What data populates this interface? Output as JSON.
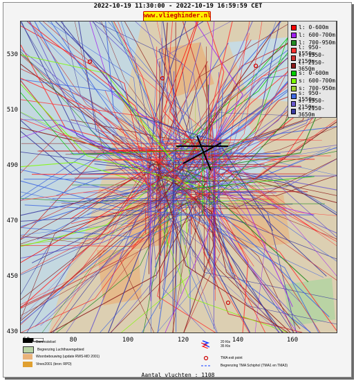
{
  "title": "2022-10-19 11:30:00 - 2022-10-19 16:59:59 CET",
  "site_badge": "www.vlieghinder.nl",
  "axes": {
    "y_ticks": [
      "530",
      "510",
      "490",
      "470",
      "450",
      "430"
    ],
    "x_ticks": [
      "60",
      "80",
      "100",
      "120",
      "140",
      "160"
    ]
  },
  "legend": [
    {
      "label": "l: 0-600m",
      "color": "#ff0000"
    },
    {
      "label": "l: 600-700m",
      "color": "#a020f0"
    },
    {
      "label": "l: 700-950m",
      "color": "#228b22"
    },
    {
      "label": "l: 950-1550m",
      "color": "#ff3030"
    },
    {
      "label": "l: 1550-2150m",
      "color": "#cd3333"
    },
    {
      "label": "l: 2150-3650m",
      "color": "#8b1a1a"
    },
    {
      "label": "s: 0-600m",
      "color": "#00cd00"
    },
    {
      "label": "s: 600-700m",
      "color": "#7cfc00"
    },
    {
      "label": "s: 700-950m",
      "color": "#9acd32"
    },
    {
      "label": "s: 950-1550m",
      "color": "#4169e1"
    },
    {
      "label": "s: 1550-2150m",
      "color": "#6a5acd"
    },
    {
      "label": "s: 2150-3650m",
      "color": "#3a3aa0"
    }
  ],
  "bottom_legend": {
    "runway": "Banenstelsel",
    "airport_boundary": "Begrenzing Luchthavengebied",
    "housing": "Woonbebouwing (update RWS-MD 2001)",
    "vinex": "Vinex2001 (bron: RPD)",
    "wind_20": "20 Kts",
    "wind_35": "35 Kts",
    "tma_exit": "TMA exit point",
    "tma_boundary": "Begrenzing TMA Schiphol  (TMA1 en TMA3)"
  },
  "footer": "Aantal vluchten : 1108",
  "colors": {
    "land": "#d9ccb0",
    "housing": "#e9b27a",
    "water": "#c7dbe3",
    "green": "#b9d3a4"
  }
}
